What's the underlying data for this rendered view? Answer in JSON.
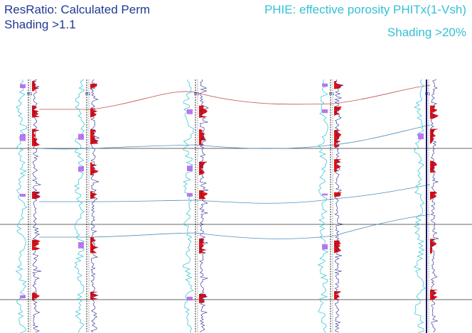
{
  "legend": {
    "resratio_line1": "ResRatio: Calculated Perm",
    "resratio_line2": "Shading >1.1",
    "phie_line1": "PHIE: effective porosity PHITx(1-Vsh)",
    "phie_line2": "Shading >20%"
  },
  "colors": {
    "resratio_text": "#1f3a93",
    "phie_text": "#33c1d6",
    "gr_curve": "#3cc8d8",
    "log_curve": "#20208c",
    "red_fill": "#e01010",
    "magenta_fill": "#b45cf0",
    "top_marker": "#c0504d",
    "correlation_line": "#4f8fbf",
    "grid": "#333333"
  },
  "wells": [
    {
      "id": "w1",
      "name": "M1"
    },
    {
      "id": "w2",
      "name": "M1"
    },
    {
      "id": "w3",
      "name": "M1"
    },
    {
      "id": "w4",
      "name": "M1"
    },
    {
      "id": "w5",
      "name": "M1"
    }
  ]
}
